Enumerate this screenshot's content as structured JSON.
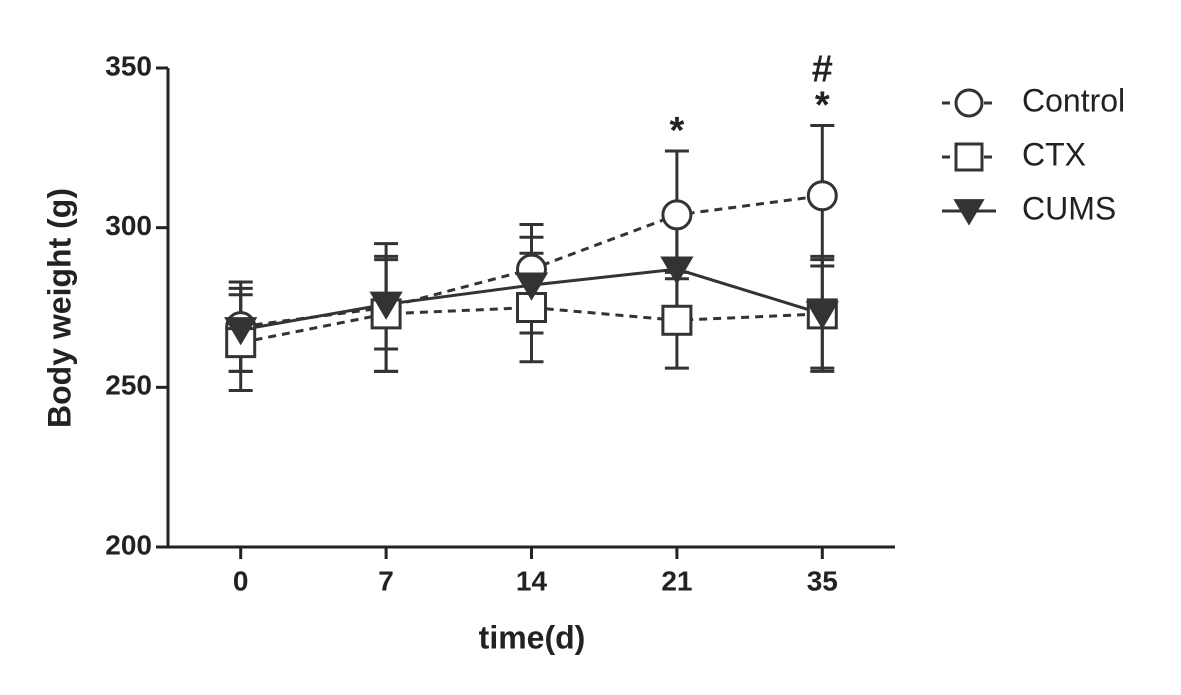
{
  "chart_data": {
    "type": "line",
    "x_label": "time(d)",
    "y_label": "Body weight (g)",
    "categories": [
      "0",
      "7",
      "14",
      "21",
      "35"
    ],
    "series": [
      {
        "name": "Control",
        "color": "#333333",
        "marker": "circle",
        "dash": true,
        "values": [
          269,
          275,
          287,
          304,
          310
        ],
        "errors": [
          14,
          20,
          14,
          20,
          22
        ]
      },
      {
        "name": "CTX",
        "color": "#333333",
        "marker": "square",
        "dash": true,
        "values": [
          264,
          273,
          275,
          271,
          273
        ],
        "errors": [
          15,
          18,
          17,
          15,
          18
        ]
      },
      {
        "name": "CUMS",
        "color": "#333333",
        "marker": "triangle-down",
        "dash": false,
        "values": [
          268,
          276,
          282,
          287,
          273
        ],
        "errors": [
          13,
          14,
          15,
          15,
          17
        ]
      }
    ],
    "annotations": [
      {
        "x": "21",
        "text": "*"
      },
      {
        "x": "35",
        "text": "*"
      },
      {
        "x": "35",
        "text": "#"
      }
    ],
    "ylim": [
      200,
      350
    ],
    "yticks": [
      200,
      250,
      300,
      350
    ],
    "legend": "right",
    "grid": false
  }
}
